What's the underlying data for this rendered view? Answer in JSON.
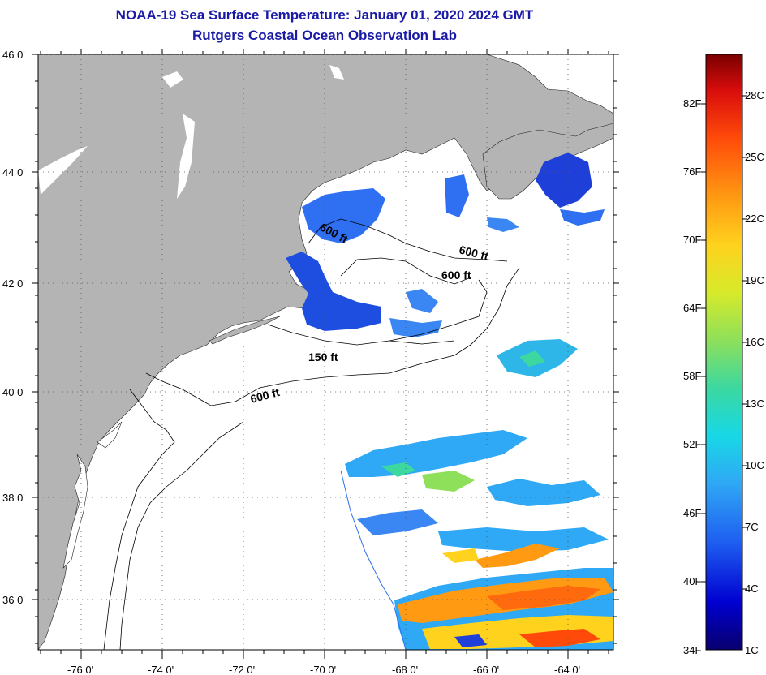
{
  "header": {
    "title": "NOAA-19 Sea Surface Temperature:  January 01, 2020 2024 GMT",
    "subtitle": "Rutgers Coastal Ocean Observation Lab"
  },
  "axes": {
    "lat_labels": [
      "46 0'",
      "44 0'",
      "42 0'",
      "40 0'",
      "38 0'",
      "36 0'"
    ],
    "lon_labels": [
      "-76 0'",
      "-74 0'",
      "-72 0'",
      "-70 0'",
      "-68 0'",
      "-66 0'",
      "-64 0'"
    ]
  },
  "contours": {
    "labels": [
      "600 ft",
      "600 ft",
      "600 ft",
      "150 ft",
      "600 ft"
    ]
  },
  "colorbar": {
    "fahrenheit": [
      "82F",
      "76F",
      "70F",
      "64F",
      "58F",
      "52F",
      "46F",
      "40F",
      "34F"
    ],
    "celsius": [
      "28C",
      "25C",
      "22C",
      "19C",
      "16C",
      "13C",
      "10C",
      "7C",
      "4C",
      "1C"
    ]
  },
  "colors": {
    "land": "#b4b4b4",
    "ocean": "#ffffff",
    "title": "#1a1aa6"
  }
}
